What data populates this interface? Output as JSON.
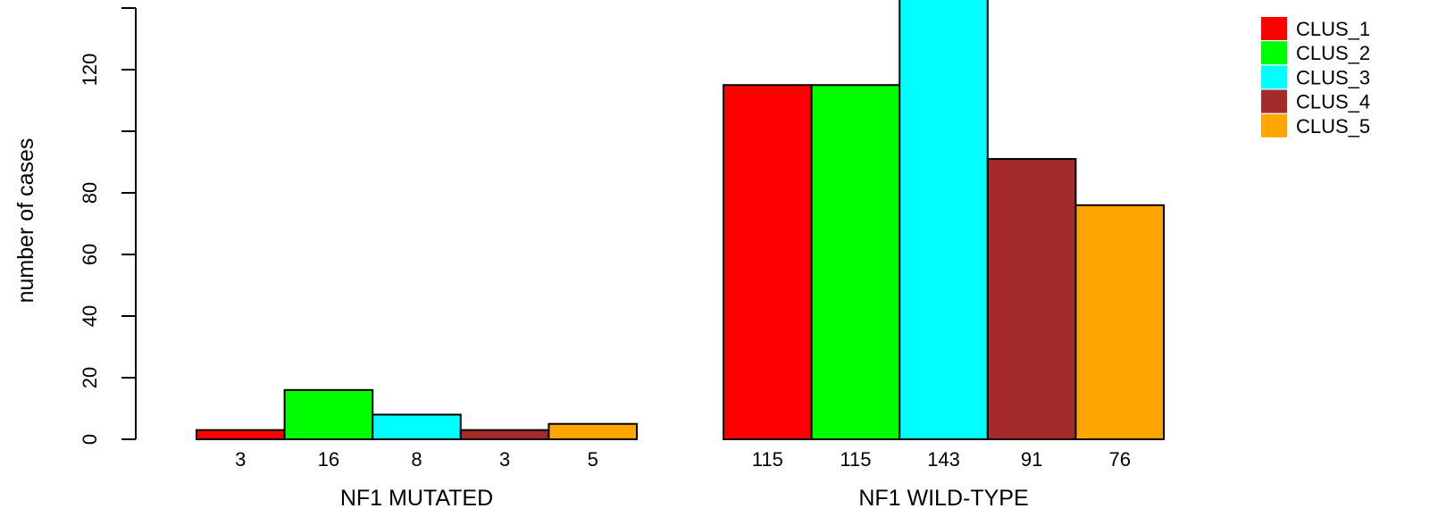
{
  "chart_data": {
    "type": "bar",
    "ylabel": "number of cases",
    "ylim": [
      0,
      143
    ],
    "yticks": [
      0,
      20,
      40,
      60,
      80,
      100,
      120,
      140
    ],
    "ytick_labels": [
      "0",
      "20",
      "40",
      "60",
      "80",
      "",
      "120",
      ""
    ],
    "groups": [
      {
        "label": "NF1 MUTATED",
        "values": [
          3,
          16,
          8,
          3,
          5
        ],
        "value_labels": [
          "3",
          "16",
          "8",
          "3",
          "5"
        ]
      },
      {
        "label": "NF1 WILD-TYPE",
        "values": [
          115,
          115,
          143,
          91,
          76
        ],
        "value_labels": [
          "115",
          "115",
          "143",
          "91",
          "76"
        ]
      }
    ],
    "series": [
      {
        "name": "CLUS_1",
        "color": "#ff0000"
      },
      {
        "name": "CLUS_2",
        "color": "#00ff00"
      },
      {
        "name": "CLUS_3",
        "color": "#00ffff"
      },
      {
        "name": "CLUS_4",
        "color": "#a52a2a"
      },
      {
        "name": "CLUS_5",
        "color": "#ffa500"
      }
    ],
    "legend": "top-right",
    "grid": false
  }
}
